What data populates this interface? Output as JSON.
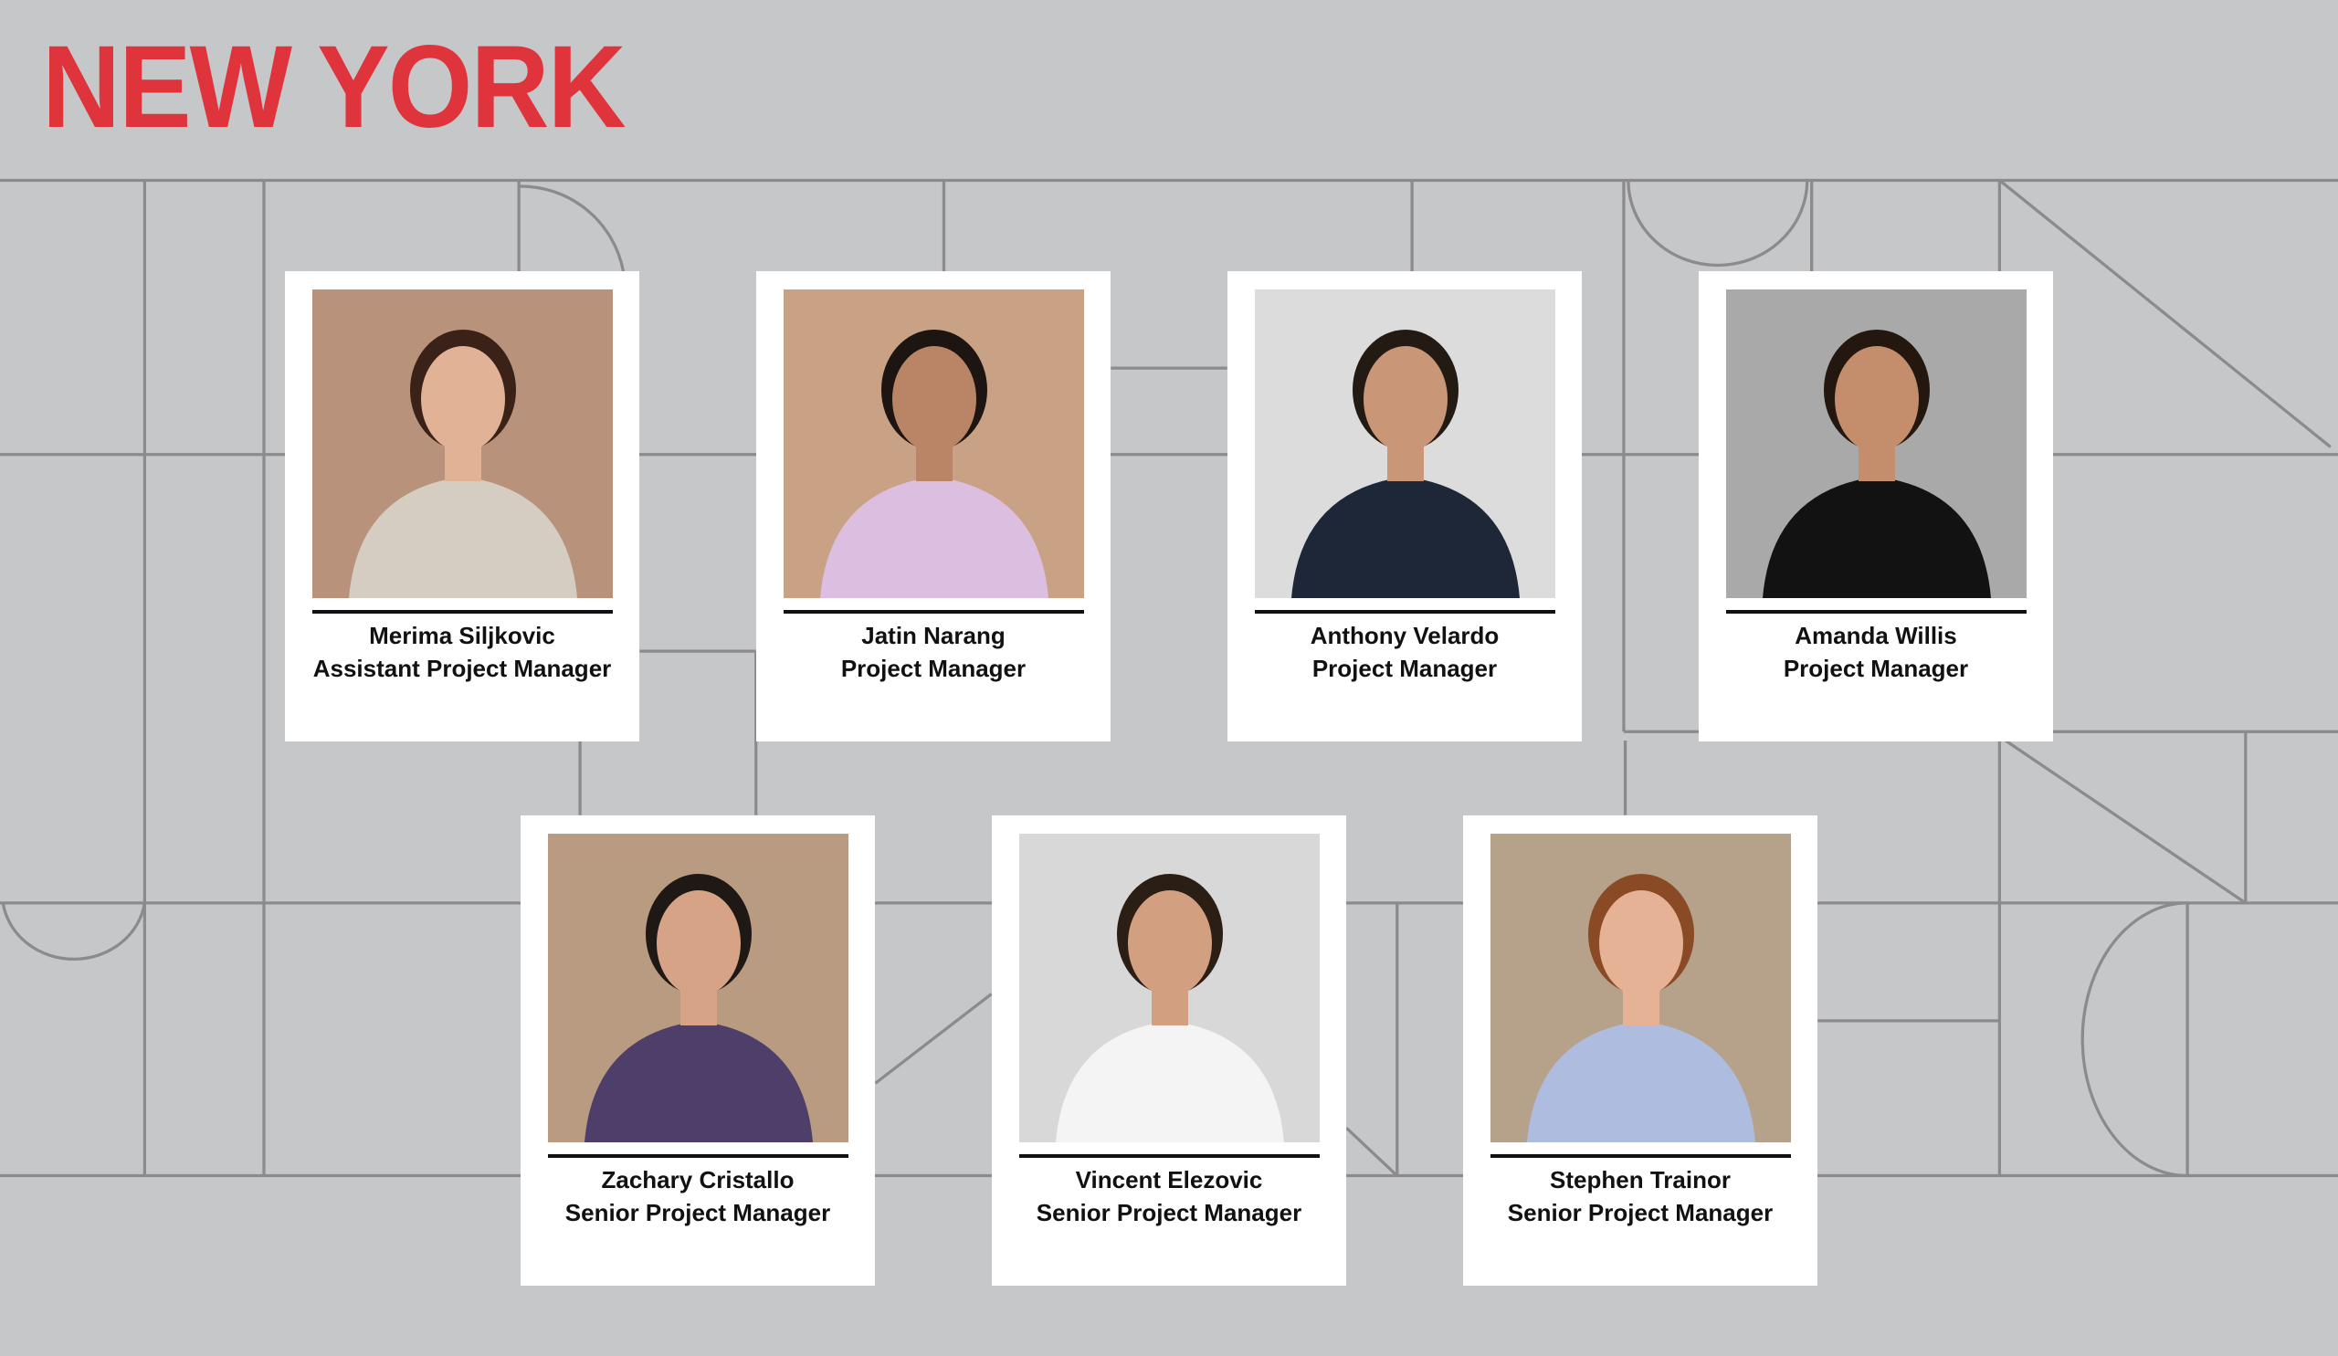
{
  "page": {
    "title": "NEW YORK",
    "title_color": "#e0343d",
    "background_color": "#c6c7c9",
    "line_color": "#8b8b8d"
  },
  "team": [
    {
      "name": "Merima Siljkovic",
      "role": "Assistant Project Manager",
      "photo": {
        "bg": "#b8927a",
        "skin": "#e2b296",
        "hair": "#3a2218",
        "shirt": "#d6cdc2"
      }
    },
    {
      "name": "Jatin Narang",
      "role": "Project Manager",
      "photo": {
        "bg": "#c9a184",
        "skin": "#b98566",
        "hair": "#1d1512",
        "shirt": "#dcbfe0"
      }
    },
    {
      "name": "Anthony Velardo",
      "role": "Project Manager",
      "photo": {
        "bg": "#dcdcdc",
        "skin": "#c99677",
        "hair": "#231a14",
        "shirt": "#1e2738"
      }
    },
    {
      "name": "Amanda Willis",
      "role": "Project Manager",
      "photo": {
        "bg": "#a9a9a9",
        "skin": "#c48e6c",
        "hair": "#24170f",
        "shirt": "#121212"
      }
    },
    {
      "name": "Zachary Cristallo",
      "role": "Senior Project Manager",
      "photo": {
        "bg": "#b99b82",
        "skin": "#d6a386",
        "hair": "#1f1915",
        "shirt": "#4e3f6a"
      }
    },
    {
      "name": "Vincent Elezovic",
      "role": "Senior Project Manager",
      "photo": {
        "bg": "#d8d8d8",
        "skin": "#d2a081",
        "hair": "#2b1e15",
        "shirt": "#f4f4f4"
      }
    },
    {
      "name": "Stephen Trainor",
      "role": "Senior Project Manager",
      "photo": {
        "bg": "#b6a18a",
        "skin": "#e5b296",
        "hair": "#8a4a25",
        "shirt": "#aebcdf"
      }
    }
  ]
}
